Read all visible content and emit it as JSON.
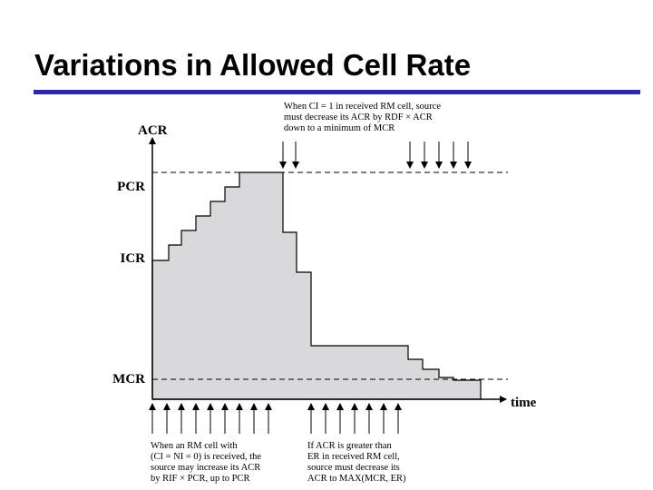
{
  "header": {
    "title": "Variations in Allowed Cell Rate"
  },
  "diagram": {
    "axis_labels": {
      "y": "ACR",
      "x": "time"
    },
    "levels": {
      "pcr": "PCR",
      "icr": "ICR",
      "mcr": "MCR"
    },
    "annotations": {
      "top": [
        "When CI = 1 in received RM cell, source",
        "must decrease its ACR by RDF × ACR",
        "down to a minimum of MCR"
      ],
      "bottom_left": [
        "When an RM cell with",
        "(CI = NI = 0) is received, the",
        "source may increase its ACR",
        "by RIF × PCR, up to PCR"
      ],
      "bottom_right": [
        "If ACR is greater than",
        "ER in received RM cell,",
        "source must decrease its",
        "ACR to MAX(MCR, ER)"
      ]
    }
  }
}
